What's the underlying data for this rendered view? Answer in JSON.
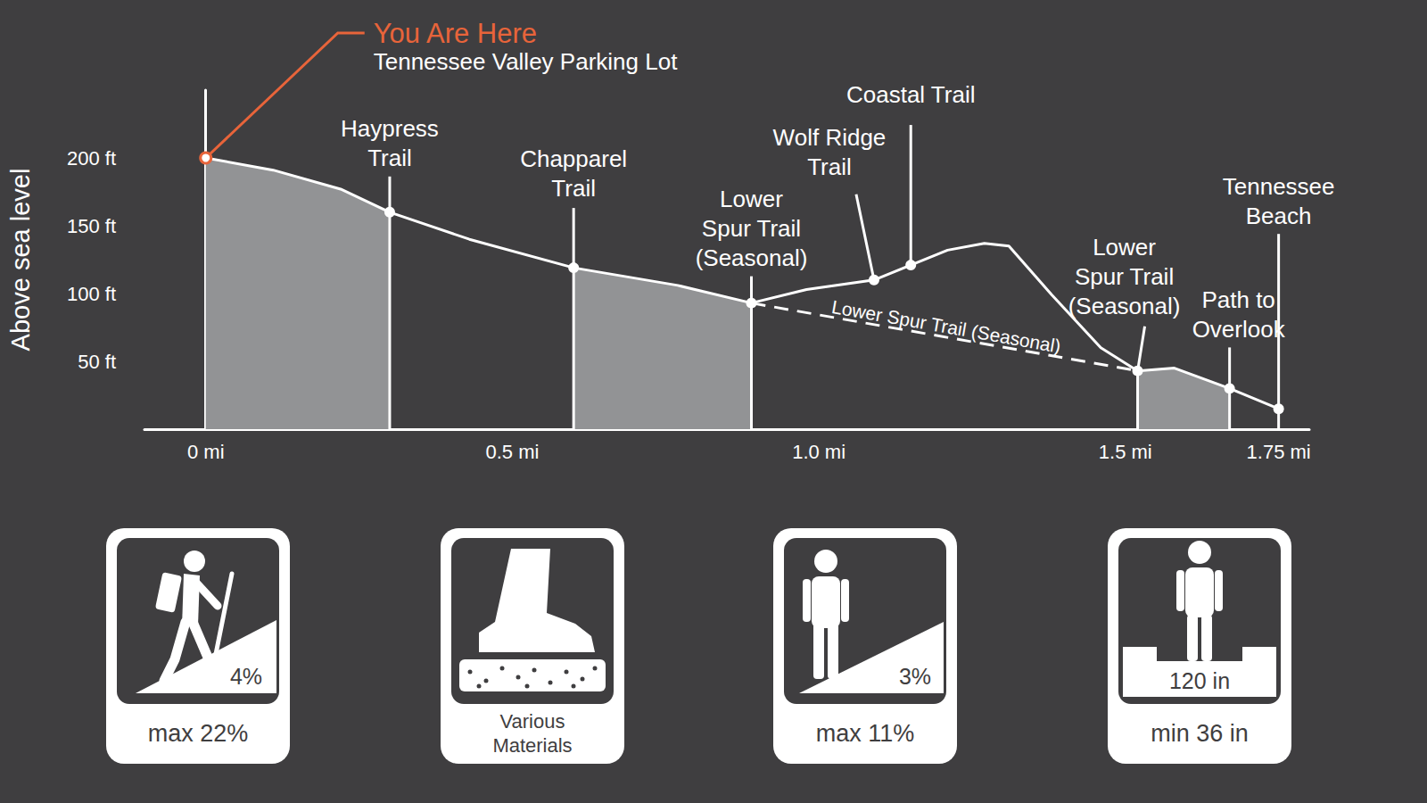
{
  "chart_data": {
    "type": "line",
    "y_label": "Above sea level",
    "x": [
      0,
      0.11,
      0.22,
      0.3,
      0.43,
      0.6,
      0.77,
      0.89,
      0.98,
      1.09,
      1.15,
      1.21,
      1.27,
      1.31,
      1.38,
      1.46,
      1.52,
      1.58,
      1.67,
      1.75
    ],
    "values": [
      200,
      191,
      177,
      160,
      140,
      119,
      106,
      93,
      103,
      110,
      121,
      132,
      137,
      135,
      99,
      60,
      43,
      45,
      30,
      15
    ],
    "color": "#ffffff",
    "shaded": {
      "color": "#929395",
      "ranges": [
        [
          0,
          0.3
        ],
        [
          0.6,
          0.89
        ],
        [
          1.52,
          1.67
        ]
      ]
    },
    "xlim": [
      -0.1,
      1.8
    ],
    "xticks": [
      {
        "value": 0,
        "label": "0 mi"
      },
      {
        "value": 0.5,
        "label": "0.5 mi"
      },
      {
        "value": 1.0,
        "label": "1.0 mi"
      },
      {
        "value": 1.5,
        "label": "1.5 mi"
      },
      {
        "value": 1.75,
        "label": "1.75 mi"
      }
    ],
    "ylim": [
      0,
      250
    ],
    "yticks": [
      {
        "value": 50,
        "label": "50 ft"
      },
      {
        "value": 100,
        "label": "100 ft"
      },
      {
        "value": 150,
        "label": "150 ft"
      },
      {
        "value": 200,
        "label": "200 ft"
      }
    ],
    "grid": false,
    "annotation": {
      "label": "You Are Here",
      "sublabel": "Tennessee Valley Parking Lot",
      "x": 0,
      "y": 200,
      "color": "#e8643a"
    },
    "landmarks": [
      {
        "label": "Haypress\nTrail",
        "x": 0.3,
        "y": 160
      },
      {
        "label": "Chapparel\nTrail",
        "x": 0.6,
        "y": 119
      },
      {
        "label": "Lower\nSpur Trail\n(Seasonal)",
        "x": 0.89,
        "y": 93
      },
      {
        "label": "Wolf Ridge\nTrail",
        "x": 1.09,
        "y": 110
      },
      {
        "label": "Coastal Trail",
        "x": 1.15,
        "y": 121
      },
      {
        "label": "Lower\nSpur Trail\n(Seasonal)",
        "x": 1.52,
        "y": 43
      },
      {
        "label": "Path to\nOverlook",
        "x": 1.67,
        "y": 30
      },
      {
        "label": "Tennessee\nBeach",
        "x": 1.75,
        "y": 15
      }
    ],
    "dashed_path": {
      "label": "Lower Spur Trail (Seasonal)",
      "x": [
        0.89,
        1.52
      ],
      "y": [
        93,
        43
      ],
      "line_style": "dashed"
    }
  },
  "icons": [
    {
      "label": "4%",
      "caption": "max 22%"
    },
    {
      "caption": "Various\nMaterials"
    },
    {
      "label": "3%",
      "caption": "max 11%"
    },
    {
      "label": "120 in",
      "caption": "min 36 in"
    }
  ]
}
